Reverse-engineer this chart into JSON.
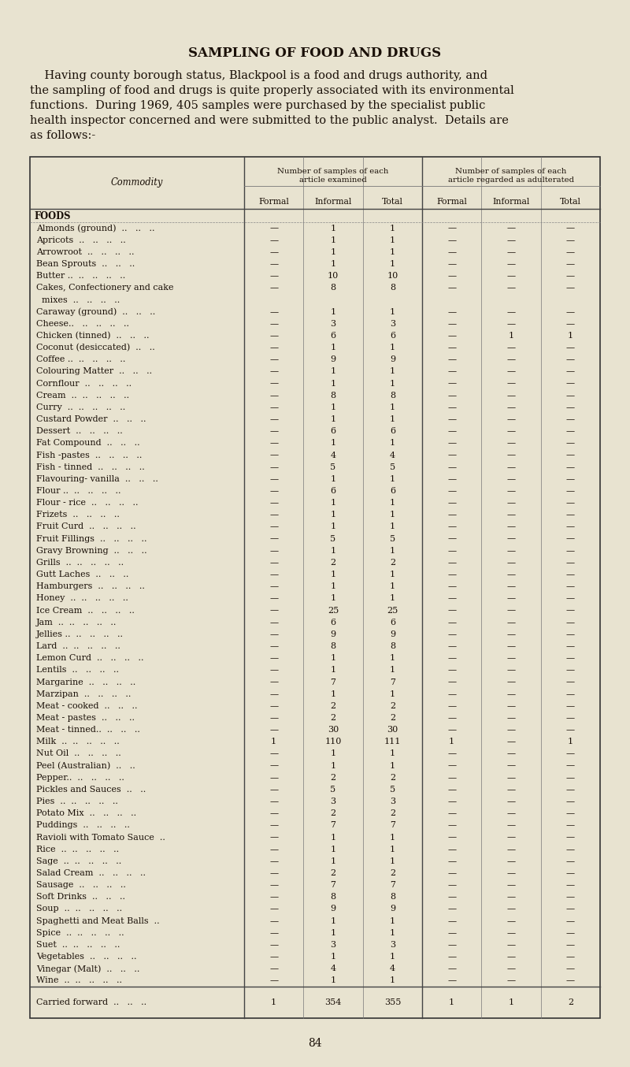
{
  "title": "SAMPLING OF FOOD AND DRUGS",
  "intro_lines": [
    "    Having county borough status, Blackpool is a food and drugs authority, and",
    "the sampling of food and drugs is quite properly associated with its environmental",
    "functions.  During 1969, 405 samples were purchased by the specialist public",
    "health inspector concerned and were submitted to the public analyst.  Details are",
    "as follows:-"
  ],
  "page_number": "84",
  "bg_color": "#e8e3d0",
  "col_header1": "Number of samples of each\narticle examined",
  "col_header2": "Number of samples of each\narticle regarded as adulterated",
  "sub_headers": [
    "Formal",
    "Informal",
    "Total",
    "Formal",
    "Informal",
    "Total"
  ],
  "commodity_label": "Commodity",
  "section_header": "FOODS",
  "rows": [
    [
      "Almonds (ground)  ..   ..   ..",
      "—",
      "1",
      "1",
      "—",
      "—",
      "—"
    ],
    [
      "Apricots  ..   ..   ..   ..",
      "—",
      "1",
      "1",
      "—",
      "—",
      "—"
    ],
    [
      "Arrowroot  ..   ..   ..   ..",
      "—",
      "1",
      "1",
      "—",
      "—",
      "—"
    ],
    [
      "Bean Sprouts  ..   ..   ..",
      "—",
      "1",
      "1",
      "—",
      "—",
      "—"
    ],
    [
      "Butter ..  ..   ..   ..   ..",
      "—",
      "10",
      "10",
      "—",
      "—",
      "—"
    ],
    [
      "Cakes, Confectionery and cake",
      "—",
      "8",
      "8",
      "—",
      "—",
      "—"
    ],
    [
      "  mixes  ..   ..   ..   ..",
      "",
      "",
      "",
      "",
      "",
      ""
    ],
    [
      "Caraway (ground)  ..   ..   ..",
      "—",
      "1",
      "1",
      "—",
      "—",
      "—"
    ],
    [
      "Cheese..   ..   ..   ..   ..",
      "—",
      "3",
      "3",
      "—",
      "—",
      "—"
    ],
    [
      "Chicken (tinned)  ..   ..   ..",
      "—",
      "6",
      "6",
      "—",
      "1",
      "1"
    ],
    [
      "Coconut (desiccated)  ..   ..",
      "—",
      "1",
      "1",
      "—",
      "—",
      "—"
    ],
    [
      "Coffee ..  ..   ..   ..   ..",
      "—",
      "9",
      "9",
      "—",
      "—",
      "—"
    ],
    [
      "Colouring Matter  ..   ..   ..",
      "—",
      "1",
      "1",
      "—",
      "—",
      "—"
    ],
    [
      "Cornflour  ..   ..   ..   ..",
      "—",
      "1",
      "1",
      "—",
      "—",
      "—"
    ],
    [
      "Cream  ..  ..   ..   ..   ..",
      "—",
      "8",
      "8",
      "—",
      "—",
      "—"
    ],
    [
      "Curry  ..  ..   ..   ..   ..",
      "—",
      "1",
      "1",
      "—",
      "—",
      "—"
    ],
    [
      "Custard Powder  ..   ..   ..",
      "—",
      "1",
      "1",
      "—",
      "—",
      "—"
    ],
    [
      "Dessert  ..   ..   ..   ..",
      "—",
      "6",
      "6",
      "—",
      "—",
      "—"
    ],
    [
      "Fat Compound  ..   ..   ..",
      "—",
      "1",
      "1",
      "—",
      "—",
      "—"
    ],
    [
      "Fish -pastes  ..   ..   ..   ..",
      "—",
      "4",
      "4",
      "—",
      "—",
      "—"
    ],
    [
      "Fish - tinned  ..   ..   ..   ..",
      "—",
      "5",
      "5",
      "—",
      "—",
      "—"
    ],
    [
      "Flavouring- vanilla  ..   ..   ..",
      "—",
      "1",
      "1",
      "—",
      "—",
      "—"
    ],
    [
      "Flour ..  ..   ..   ..   ..",
      "—",
      "6",
      "6",
      "—",
      "—",
      "—"
    ],
    [
      "Flour - rice  ..   ..   ..   ..",
      "—",
      "1",
      "1",
      "—",
      "—",
      "—"
    ],
    [
      "Frizets  ..   ..   ..   ..",
      "—",
      "1",
      "1",
      "—",
      "—",
      "—"
    ],
    [
      "Fruit Curd  ..   ..   ..   ..",
      "—",
      "1",
      "1",
      "—",
      "—",
      "—"
    ],
    [
      "Fruit Fillings  ..   ..   ..   ..",
      "—",
      "5",
      "5",
      "—",
      "—",
      "—"
    ],
    [
      "Gravy Browning  ..   ..   ..",
      "—",
      "1",
      "1",
      "—",
      "—",
      "—"
    ],
    [
      "Grills  ..  ..   ..   ..   ..",
      "—",
      "2",
      "2",
      "—",
      "—",
      "—"
    ],
    [
      "Gutt Laches  ..   ..   ..",
      "—",
      "1",
      "1",
      "—",
      "—",
      "—"
    ],
    [
      "Hamburgers  ..   ..   ..   ..",
      "—",
      "1",
      "1",
      "—",
      "—",
      "—"
    ],
    [
      "Honey  ..  ..   ..   ..   ..",
      "—",
      "1",
      "1",
      "—",
      "—",
      "—"
    ],
    [
      "Ice Cream  ..   ..   ..   ..",
      "—",
      "25",
      "25",
      "—",
      "—",
      "—"
    ],
    [
      "Jam  ..  ..   ..   ..   ..",
      "—",
      "6",
      "6",
      "—",
      "—",
      "—"
    ],
    [
      "Jellies ..  ..   ..   ..   ..",
      "—",
      "9",
      "9",
      "—",
      "—",
      "—"
    ],
    [
      "Lard  ..  ..   ..   ..   ..",
      "—",
      "8",
      "8",
      "—",
      "—",
      "—"
    ],
    [
      "Lemon Curd  ..   ..   ..   ..",
      "—",
      "1",
      "1",
      "—",
      "—",
      "—"
    ],
    [
      "Lentils  ..   ..   ..   ..",
      "—",
      "1",
      "1",
      "—",
      "—",
      "—"
    ],
    [
      "Margarine  ..   ..   ..   ..",
      "—",
      "7",
      "7",
      "—",
      "—",
      "—"
    ],
    [
      "Marzipan  ..   ..   ..   ..",
      "—",
      "1",
      "1",
      "—",
      "—",
      "—"
    ],
    [
      "Meat - cooked  ..   ..   ..",
      "—",
      "2",
      "2",
      "—",
      "—",
      "—"
    ],
    [
      "Meat - pastes  ..   ..   ..",
      "—",
      "2",
      "2",
      "—",
      "—",
      "—"
    ],
    [
      "Meat - tinned..  ..   ..   ..",
      "—",
      "30",
      "30",
      "—",
      "—",
      "—"
    ],
    [
      "Milk  ..  ..   ..   ..   ..",
      "1",
      "110",
      "111",
      "1",
      "—",
      "1"
    ],
    [
      "Nut Oil  ..   ..   ..   ..",
      "—",
      "1",
      "1",
      "—",
      "—",
      "—"
    ],
    [
      "Peel (Australian)  ..   ..",
      "—",
      "1",
      "1",
      "—",
      "—",
      "—"
    ],
    [
      "Pepper..  ..   ..   ..   ..",
      "—",
      "2",
      "2",
      "—",
      "—",
      "—"
    ],
    [
      "Pickles and Sauces  ..   ..",
      "—",
      "5",
      "5",
      "—",
      "—",
      "—"
    ],
    [
      "Pies  ..  ..   ..   ..   ..",
      "—",
      "3",
      "3",
      "—",
      "—",
      "—"
    ],
    [
      "Potato Mix  ..   ..   ..   ..",
      "—",
      "2",
      "2",
      "—",
      "—",
      "—"
    ],
    [
      "Puddings  ..   ..   ..   ..",
      "—",
      "7",
      "7",
      "—",
      "—",
      "—"
    ],
    [
      "Ravioli with Tomato Sauce  ..",
      "—",
      "1",
      "1",
      "—",
      "—",
      "—"
    ],
    [
      "Rice  ..  ..   ..   ..   ..",
      "—",
      "1",
      "1",
      "—",
      "—",
      "—"
    ],
    [
      "Sage  ..  ..   ..   ..   ..",
      "—",
      "1",
      "1",
      "—",
      "—",
      "—"
    ],
    [
      "Salad Cream  ..   ..   ..   ..",
      "—",
      "2",
      "2",
      "—",
      "—",
      "—"
    ],
    [
      "Sausage  ..   ..   ..   ..",
      "—",
      "7",
      "7",
      "—",
      "—",
      "—"
    ],
    [
      "Soft Drinks  ..   ..   ..",
      "—",
      "8",
      "8",
      "—",
      "—",
      "—"
    ],
    [
      "Soup  ..  ..   ..   ..   ..",
      "—",
      "9",
      "9",
      "—",
      "—",
      "—"
    ],
    [
      "Spaghetti and Meat Balls  ..",
      "—",
      "1",
      "1",
      "—",
      "—",
      "—"
    ],
    [
      "Spice  ..  ..   ..   ..   ..",
      "—",
      "1",
      "1",
      "—",
      "—",
      "—"
    ],
    [
      "Suet  ..  ..   ..   ..   ..",
      "—",
      "3",
      "3",
      "—",
      "—",
      "—"
    ],
    [
      "Vegetables  ..   ..   ..   ..",
      "—",
      "1",
      "1",
      "—",
      "—",
      "—"
    ],
    [
      "Vinegar (Malt)  ..   ..   ..",
      "—",
      "4",
      "4",
      "—",
      "—",
      "—"
    ],
    [
      "Wine  ..  ..   ..   ..   ..",
      "—",
      "1",
      "1",
      "—",
      "—",
      "—"
    ]
  ],
  "footer_row": [
    "Carried forward  ..   ..   ..",
    "1",
    "354",
    "355",
    "1",
    "1",
    "2"
  ],
  "title_fontsize": 12,
  "intro_fontsize": 10.5,
  "table_fontsize": 8.0,
  "header_fontsize": 7.8,
  "text_color": "#1a1008"
}
